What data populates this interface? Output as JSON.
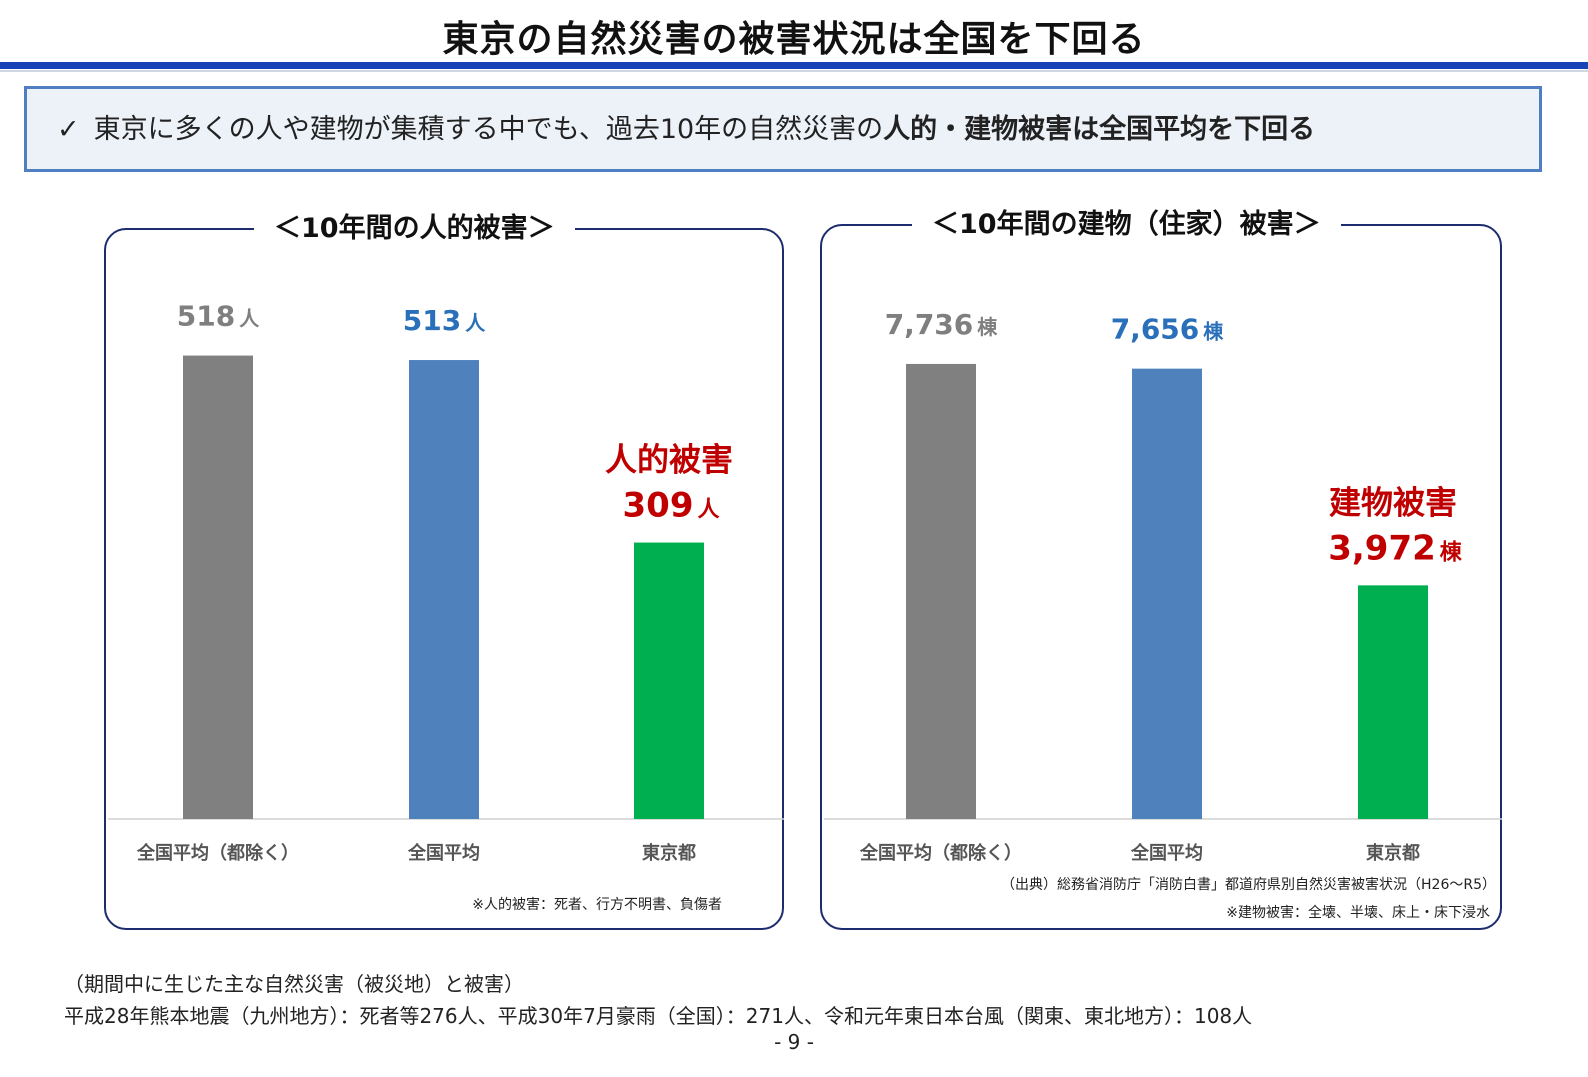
{
  "title": "東京の自然災害の被害状況は全国を下回る",
  "summary": {
    "check": "✓",
    "text": "東京に多くの人や建物が集積する中でも、過去10年の自然災害の",
    "bold": "人的・建物被害は全国平均を下回る"
  },
  "chart_data": [
    {
      "type": "bar",
      "title": "＜10年間の人的被害＞",
      "categories": [
        "全国平均（都除く）",
        "全国平均",
        "東京都"
      ],
      "values": [
        518,
        513,
        309
      ],
      "unit": "人",
      "value_labels": [
        "518",
        "513",
        "309"
      ],
      "colors": [
        "#808080",
        "#4f81bd",
        "#00b050"
      ],
      "label_colors": [
        "#7f7f7f",
        "#2a6fba",
        "#c00000"
      ],
      "callout": "人的被害",
      "ylim": [
        0,
        560
      ],
      "note": "※人的被害：死者、行方不明書、負傷者"
    },
    {
      "type": "bar",
      "title": "＜10年間の建物（住家）被害＞",
      "categories": [
        "全国平均（都除く）",
        "全国平均",
        "東京都"
      ],
      "values": [
        7736,
        7656,
        3972
      ],
      "unit": "棟",
      "value_labels": [
        "7,736",
        "7,656",
        "3,972"
      ],
      "colors": [
        "#808080",
        "#4f81bd",
        "#00b050"
      ],
      "label_colors": [
        "#7f7f7f",
        "#2a6fba",
        "#c00000"
      ],
      "callout": "建物被害",
      "ylim": [
        0,
        8500
      ],
      "note": "※建物被害：全壊、半壊、床上・床下浸水",
      "source": "（出典）総務省消防庁「消防白書」都道府県別自然災害被害状況（H26〜R5）"
    }
  ],
  "footer": {
    "heading": "（期間中に生じた主な自然災害（被災地）と被害）",
    "body": "平成28年熊本地震（九州地方）：死者等276人、平成30年7月豪雨（全国）：271人、令和元年東日本台風（関東、東北地方）：108人"
  },
  "page_number": "- 9 -"
}
